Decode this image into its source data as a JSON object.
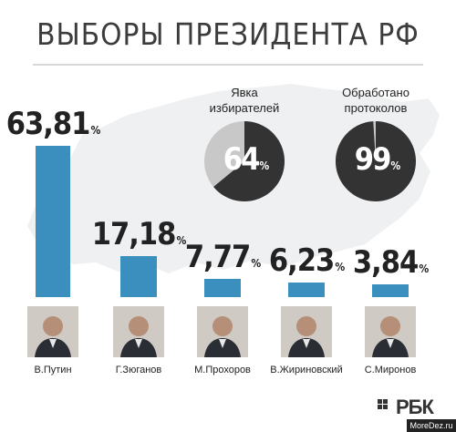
{
  "header": {
    "title": "ВЫБОРЫ ПРЕЗИДЕНТА РФ"
  },
  "colors": {
    "bar": "#3a8fbf",
    "pie_dark": "#333333",
    "pie_light": "#c8c8c8",
    "map": "#eef0f1"
  },
  "chart_data": [
    {
      "type": "bar",
      "categories": [
        "В.Путин",
        "Г.Зюганов",
        "М.Прохоров",
        "В.Жириновский",
        "С.Миронов"
      ],
      "values": [
        63.81,
        17.18,
        7.77,
        6.23,
        3.84
      ],
      "value_labels": [
        "63,81",
        "17,18",
        "7,77",
        "6,23",
        "3,84"
      ],
      "unit": "%"
    },
    {
      "type": "pie",
      "title": "Явка избирателей",
      "title_lines": [
        "Явка",
        "избирателей"
      ],
      "value": 64,
      "value_label": "64",
      "unit": "%"
    },
    {
      "type": "pie",
      "title": "Обработано протоколов",
      "title_lines": [
        "Обработано",
        "протоколов"
      ],
      "value": 99,
      "value_label": "99",
      "unit": "%"
    }
  ],
  "photos": [
    {
      "alt": "В.Путин",
      "icon": "portrait-icon"
    },
    {
      "alt": "Г.Зюганов",
      "icon": "portrait-icon"
    },
    {
      "alt": "М.Прохоров",
      "icon": "portrait-icon"
    },
    {
      "alt": "В.Жириновский",
      "icon": "portrait-icon"
    },
    {
      "alt": "С.Миронов",
      "icon": "portrait-icon"
    }
  ],
  "footer": {
    "brand": "РБК",
    "watermark": "MoreDez.ru"
  }
}
